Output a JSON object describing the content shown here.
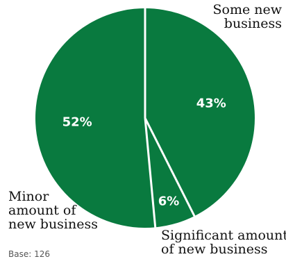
{
  "chart_data": {
    "type": "pie",
    "slices": [
      {
        "label": "Some new business",
        "value": 43,
        "value_label": "43%",
        "color": "#097a3f"
      },
      {
        "label": "Significant amount of new business",
        "value": 6,
        "value_label": "6%",
        "color": "#097a3f"
      },
      {
        "label": "Minor amount of new business",
        "value": 52,
        "value_label": "52%",
        "color": "#097a3f"
      }
    ],
    "value_label_color": "#ffffff",
    "separator_color": "#ffffff",
    "start_angle_deg": 0,
    "direction": "clockwise",
    "base_note": "Base: 126"
  },
  "labels": {
    "some_line1": "Some new",
    "some_line2": "business",
    "minor_line1": "Minor",
    "minor_line2": "amount of",
    "minor_line3": "new business",
    "sig_line1": "Significant amount",
    "sig_line2": "of new business"
  }
}
